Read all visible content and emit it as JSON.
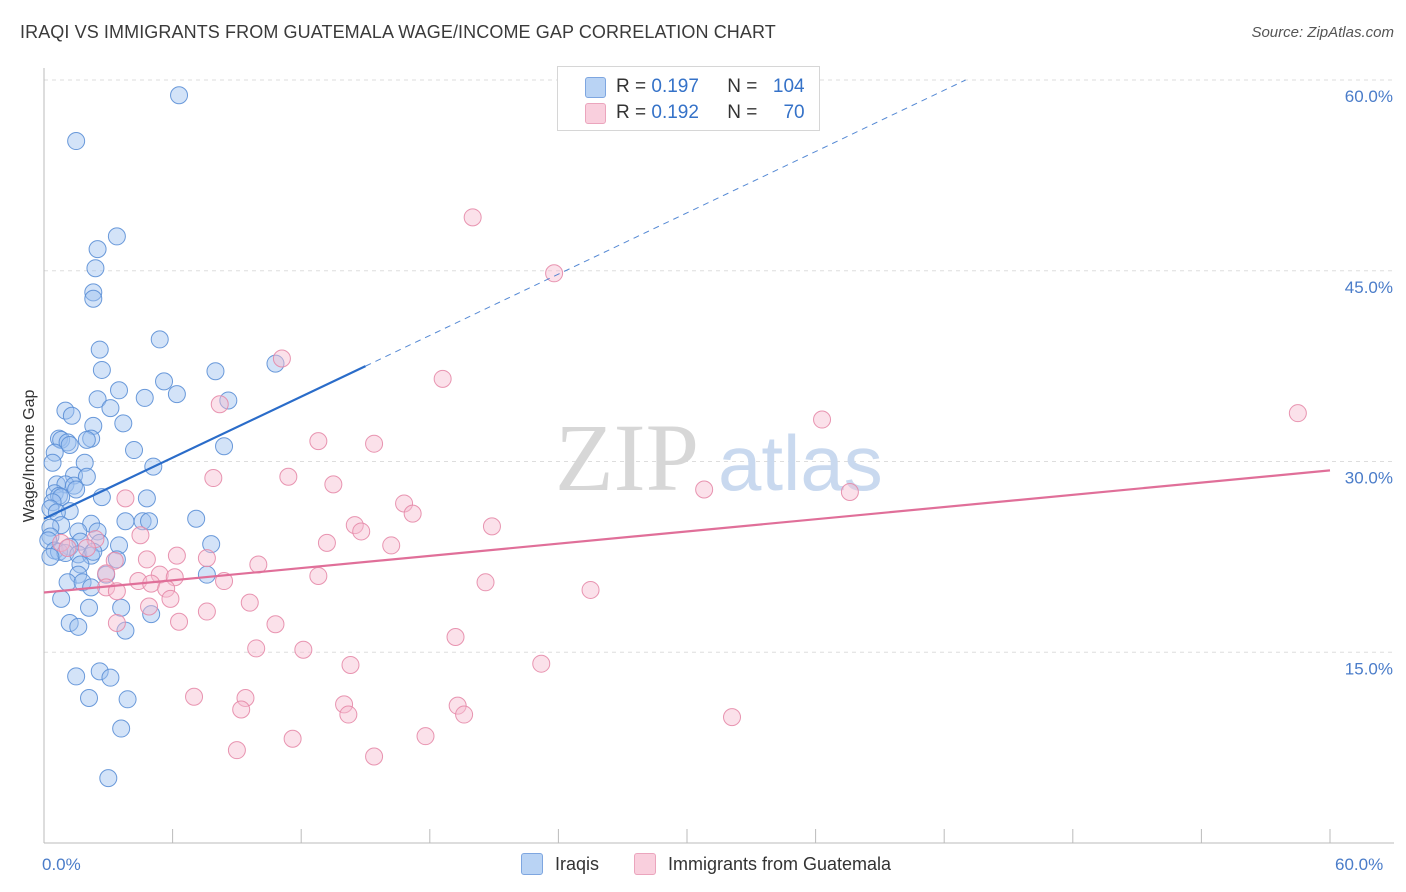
{
  "title": "IRAQI VS IMMIGRANTS FROM GUATEMALA WAGE/INCOME GAP CORRELATION CHART",
  "source": "Source: ZipAtlas.com",
  "watermark": {
    "zip": "ZIP",
    "atlas": "atlas"
  },
  "legend": {
    "r_label": "R =",
    "n_label": "N =",
    "rows": [
      {
        "r": "0.197",
        "n": "104"
      },
      {
        "r": "0.192",
        "n": "70"
      }
    ]
  },
  "bottom_legend": [
    "Iraqis",
    "Immigrants from Guatemala"
  ],
  "colors": {
    "iraqi_fill": "#9ec1ef",
    "iraqi_stroke": "#5b8fd6",
    "iraqi_line": "#2a6cc9",
    "guat_fill": "#f6bcd0",
    "guat_stroke": "#e58aa9",
    "guat_line": "#e06f99",
    "grid": "#dddddd",
    "tick_text": "#4a7cc9"
  },
  "chart_data": {
    "type": "scatter",
    "title": "IRAQI VS IMMIGRANTS FROM GUATEMALA WAGE/INCOME GAP CORRELATION CHART",
    "xlabel": "",
    "ylabel": "Wage/Income Gap",
    "xlim": [
      0,
      60
    ],
    "ylim": [
      0,
      60
    ],
    "x_tick_labels": [
      "0.0%",
      "60.0%"
    ],
    "y_ticks": [
      15,
      30,
      45,
      60
    ],
    "y_tick_labels": [
      "15.0%",
      "30.0%",
      "45.0%",
      "60.0%"
    ],
    "grid": true,
    "legend_position": "top-center",
    "series": [
      {
        "name": "Iraqis",
        "r": 0.197,
        "n": 104,
        "trend": {
          "x0": 0,
          "y0": 25.5,
          "x1": 15,
          "y1": 37.5,
          "dashed_to_x": 43,
          "dashed_to_y": 60
        },
        "points": [
          [
            6.3,
            58.8
          ],
          [
            1.5,
            55.2
          ],
          [
            3.4,
            47.7
          ],
          [
            2.5,
            46.7
          ],
          [
            2.4,
            45.2
          ],
          [
            2.3,
            43.3
          ],
          [
            2.3,
            42.8
          ],
          [
            5.4,
            39.6
          ],
          [
            2.6,
            38.8
          ],
          [
            10.8,
            37.7
          ],
          [
            8.0,
            37.1
          ],
          [
            2.7,
            37.2
          ],
          [
            5.6,
            36.3
          ],
          [
            3.5,
            35.6
          ],
          [
            6.2,
            35.3
          ],
          [
            4.7,
            35.0
          ],
          [
            8.6,
            34.8
          ],
          [
            2.5,
            34.9
          ],
          [
            3.1,
            34.2
          ],
          [
            1.0,
            34.0
          ],
          [
            1.3,
            33.6
          ],
          [
            3.7,
            33.0
          ],
          [
            2.3,
            32.8
          ],
          [
            0.7,
            31.8
          ],
          [
            0.8,
            31.7
          ],
          [
            2.2,
            31.8
          ],
          [
            1.1,
            31.5
          ],
          [
            2.0,
            31.7
          ],
          [
            1.2,
            31.3
          ],
          [
            4.2,
            30.9
          ],
          [
            8.4,
            31.2
          ],
          [
            0.5,
            30.7
          ],
          [
            1.9,
            29.9
          ],
          [
            0.4,
            29.9
          ],
          [
            5.1,
            29.6
          ],
          [
            1.4,
            28.9
          ],
          [
            2.0,
            28.8
          ],
          [
            0.6,
            28.2
          ],
          [
            1.0,
            28.2
          ],
          [
            1.4,
            28.1
          ],
          [
            1.5,
            27.8
          ],
          [
            0.5,
            27.5
          ],
          [
            0.7,
            27.3
          ],
          [
            0.8,
            27.2
          ],
          [
            2.7,
            27.2
          ],
          [
            4.8,
            27.1
          ],
          [
            0.4,
            26.8
          ],
          [
            0.3,
            26.3
          ],
          [
            1.2,
            26.1
          ],
          [
            0.6,
            26.0
          ],
          [
            7.1,
            25.5
          ],
          [
            3.8,
            25.3
          ],
          [
            4.6,
            25.3
          ],
          [
            4.9,
            25.3
          ],
          [
            2.2,
            25.1
          ],
          [
            0.8,
            25.0
          ],
          [
            0.3,
            24.8
          ],
          [
            2.5,
            24.5
          ],
          [
            1.6,
            24.5
          ],
          [
            0.3,
            24.1
          ],
          [
            0.2,
            23.8
          ],
          [
            1.7,
            23.7
          ],
          [
            2.6,
            23.6
          ],
          [
            7.8,
            23.5
          ],
          [
            3.5,
            23.4
          ],
          [
            1.2,
            23.3
          ],
          [
            0.5,
            23.0
          ],
          [
            0.7,
            22.9
          ],
          [
            1.0,
            22.8
          ],
          [
            1.6,
            22.7
          ],
          [
            2.2,
            22.6
          ],
          [
            2.3,
            22.9
          ],
          [
            0.3,
            22.5
          ],
          [
            3.4,
            22.3
          ],
          [
            1.7,
            21.9
          ],
          [
            7.6,
            21.1
          ],
          [
            1.6,
            21.1
          ],
          [
            2.9,
            21.1
          ],
          [
            1.1,
            20.5
          ],
          [
            1.8,
            20.5
          ],
          [
            2.2,
            20.1
          ],
          [
            0.8,
            19.2
          ],
          [
            3.6,
            18.5
          ],
          [
            2.1,
            18.5
          ],
          [
            5.0,
            18.0
          ],
          [
            1.2,
            17.3
          ],
          [
            1.6,
            17.0
          ],
          [
            3.8,
            16.7
          ],
          [
            2.6,
            13.5
          ],
          [
            1.5,
            13.1
          ],
          [
            3.1,
            13.0
          ],
          [
            2.1,
            11.4
          ],
          [
            3.9,
            11.3
          ],
          [
            3.6,
            9.0
          ],
          [
            3.0,
            5.1
          ]
        ]
      },
      {
        "name": "Immigrants from Guatemala",
        "r": 0.192,
        "n": 70,
        "trend": {
          "x0": 0,
          "y0": 19.7,
          "x1": 60,
          "y1": 29.3
        },
        "points": [
          [
            20.0,
            49.2
          ],
          [
            23.8,
            44.8
          ],
          [
            11.1,
            38.1
          ],
          [
            18.6,
            36.5
          ],
          [
            8.2,
            34.5
          ],
          [
            58.5,
            33.8
          ],
          [
            36.3,
            33.3
          ],
          [
            12.8,
            31.6
          ],
          [
            15.4,
            31.4
          ],
          [
            11.4,
            28.8
          ],
          [
            7.9,
            28.7
          ],
          [
            13.5,
            28.2
          ],
          [
            30.8,
            27.8
          ],
          [
            37.6,
            27.6
          ],
          [
            3.8,
            27.1
          ],
          [
            16.8,
            26.7
          ],
          [
            17.2,
            25.9
          ],
          [
            14.5,
            25.0
          ],
          [
            20.9,
            24.9
          ],
          [
            14.8,
            24.5
          ],
          [
            4.5,
            24.2
          ],
          [
            2.4,
            23.9
          ],
          [
            0.8,
            23.6
          ],
          [
            13.2,
            23.6
          ],
          [
            16.2,
            23.4
          ],
          [
            2.0,
            23.2
          ],
          [
            1.1,
            23.2
          ],
          [
            6.2,
            22.6
          ],
          [
            7.6,
            22.4
          ],
          [
            4.8,
            22.3
          ],
          [
            3.3,
            22.2
          ],
          [
            10.0,
            21.9
          ],
          [
            2.9,
            21.2
          ],
          [
            5.4,
            21.1
          ],
          [
            6.1,
            20.9
          ],
          [
            12.8,
            21.0
          ],
          [
            4.4,
            20.6
          ],
          [
            8.4,
            20.6
          ],
          [
            5.0,
            20.4
          ],
          [
            20.6,
            20.5
          ],
          [
            2.9,
            20.1
          ],
          [
            5.7,
            20.0
          ],
          [
            25.5,
            19.9
          ],
          [
            3.4,
            19.8
          ],
          [
            5.9,
            19.2
          ],
          [
            9.6,
            18.9
          ],
          [
            4.9,
            18.6
          ],
          [
            7.6,
            18.2
          ],
          [
            6.3,
            17.4
          ],
          [
            3.4,
            17.3
          ],
          [
            10.8,
            17.2
          ],
          [
            19.2,
            16.2
          ],
          [
            9.9,
            15.3
          ],
          [
            12.1,
            15.2
          ],
          [
            23.2,
            14.1
          ],
          [
            14.3,
            14.0
          ],
          [
            7.0,
            11.5
          ],
          [
            9.4,
            11.4
          ],
          [
            14.0,
            10.9
          ],
          [
            19.3,
            10.8
          ],
          [
            9.2,
            10.5
          ],
          [
            14.2,
            10.1
          ],
          [
            19.6,
            10.1
          ],
          [
            32.1,
            9.9
          ],
          [
            17.8,
            8.4
          ],
          [
            11.6,
            8.2
          ],
          [
            9.0,
            7.3
          ],
          [
            15.4,
            6.8
          ]
        ]
      }
    ]
  }
}
